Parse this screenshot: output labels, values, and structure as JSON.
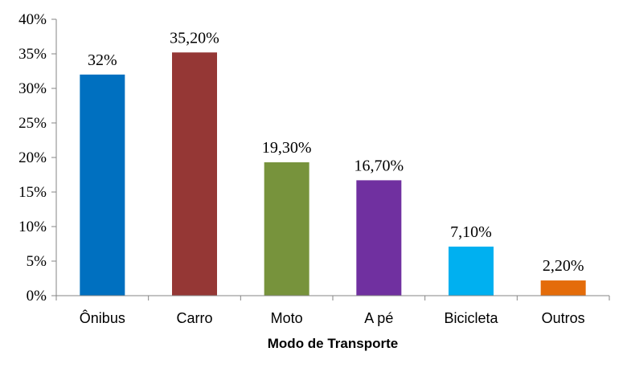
{
  "chart_data": {
    "type": "bar",
    "title": "",
    "xlabel": "Modo de Transporte",
    "ylabel": "",
    "ylim": [
      0,
      40
    ],
    "yticks": [
      0,
      5,
      10,
      15,
      20,
      25,
      30,
      35,
      40
    ],
    "ytick_labels": [
      "0%",
      "5%",
      "10%",
      "15%",
      "20%",
      "25%",
      "30%",
      "35%",
      "40%"
    ],
    "grid": false,
    "legend": "none",
    "categories": [
      "Ônibus",
      "Carro",
      "Moto",
      "A pé",
      "Bicicleta",
      "Outros"
    ],
    "values": [
      32,
      35.2,
      19.3,
      16.7,
      7.1,
      2.2
    ],
    "data_labels": [
      "32%",
      "35,20%",
      "19,30%",
      "16,70%",
      "7,10%",
      "2,20%"
    ],
    "colors": [
      "#0070C0",
      "#953735",
      "#77933C",
      "#7030A0",
      "#00B0F0",
      "#E46C0A"
    ]
  }
}
